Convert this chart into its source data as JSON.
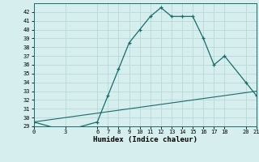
{
  "xlabel": "Humidex (Indice chaleur)",
  "background_color": "#d6eeee",
  "line_color": "#1a6b6b",
  "grid_color": "#b8d8d8",
  "curve_x": [
    0,
    3,
    6,
    7,
    8,
    9,
    10,
    11,
    12,
    13,
    14,
    15,
    16,
    17,
    18,
    20,
    21
  ],
  "curve_y": [
    29.5,
    28.5,
    29.5,
    32.5,
    35.5,
    38.5,
    40.0,
    41.5,
    42.5,
    41.5,
    41.5,
    41.5,
    39.0,
    36.0,
    37.0,
    34.0,
    32.5
  ],
  "line2_x": [
    0,
    21
  ],
  "line2_y": [
    29.5,
    33.0
  ],
  "ylim": [
    29,
    43
  ],
  "xlim": [
    0,
    21
  ],
  "yticks": [
    29,
    30,
    31,
    32,
    33,
    34,
    35,
    36,
    37,
    38,
    39,
    40,
    41,
    42
  ],
  "xticks": [
    0,
    3,
    6,
    7,
    8,
    9,
    10,
    11,
    12,
    13,
    14,
    15,
    16,
    17,
    18,
    20,
    21
  ],
  "tick_fontsize": 5,
  "xlabel_fontsize": 6.5
}
